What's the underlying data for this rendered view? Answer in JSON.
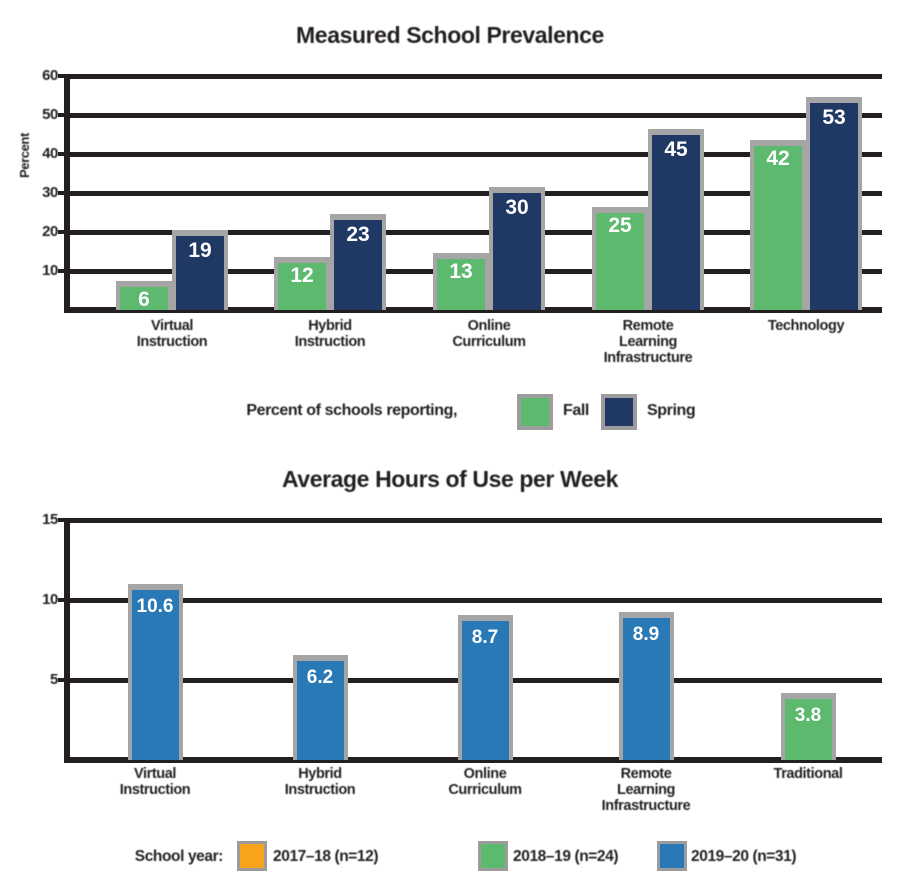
{
  "page_background": "#ffffff",
  "text_color": "#231f20",
  "colors": {
    "green": "#5cb96d",
    "navy": "#1f3864",
    "blue": "#2879b5",
    "orange": "#f9a21b",
    "bar_outline_gray": "#a5a5a5",
    "grid_dark": "#231f20",
    "value_label_white": "#ffffff"
  },
  "chart_data": [
    {
      "type": "bar",
      "title": "Measured School Prevalence",
      "ylabel": "Percent",
      "xlabel": "",
      "ylim": [
        0,
        60
      ],
      "yticks": [
        10,
        20,
        30,
        40,
        50,
        60
      ],
      "grid": true,
      "legend_position": "bottom",
      "legend_intro": "Percent of schools reporting,",
      "categories": [
        "Virtual Instruction",
        "Hybrid Instruction",
        "Online Curriculum",
        "Remote Learning Infrastructure",
        "Technology"
      ],
      "category_lines": [
        [
          "Virtual",
          "Instruction"
        ],
        [
          "Hybrid",
          "Instruction"
        ],
        [
          "Online",
          "Curriculum"
        ],
        [
          "Remote",
          "Learning",
          "Infrastructure"
        ],
        [
          "Technology"
        ]
      ],
      "series": [
        {
          "name": "Fall",
          "color": "#5cb96d",
          "values": [
            6,
            12,
            13,
            25,
            42
          ]
        },
        {
          "name": "Spring",
          "color": "#1f3864",
          "values": [
            19,
            23,
            30,
            45,
            53
          ]
        }
      ]
    },
    {
      "type": "bar",
      "title": "Average Hours of Use per Week",
      "ylabel": "",
      "xlabel": "",
      "ylim": [
        0,
        15
      ],
      "yticks": [
        5,
        10,
        15
      ],
      "grid": true,
      "legend_position": "bottom",
      "legend_intro": "School year:",
      "categories": [
        "Virtual Instruction",
        "Hybrid Instruction",
        "Online Curriculum",
        "Remote Learning Infrastructure",
        "Traditional"
      ],
      "category_lines": [
        [
          "Virtual",
          "Instruction"
        ],
        [
          "Hybrid",
          "Instruction"
        ],
        [
          "Online",
          "Curriculum"
        ],
        [
          "Remote",
          "Learning",
          "Infrastructure"
        ],
        [
          "Traditional"
        ]
      ],
      "values": [
        10.6,
        6.2,
        8.7,
        8.9,
        3.8
      ],
      "bar_colors": [
        "#2879b5",
        "#2879b5",
        "#2879b5",
        "#2879b5",
        "#5cb96d"
      ],
      "legend": {
        "items": [
          {
            "label": "2017–18 (n=12)",
            "color": "#f9a21b"
          },
          {
            "label": "2018–19 (n=24)",
            "color": "#5cb96d"
          },
          {
            "label": "2019–20 (n=31)",
            "color": "#2879b5"
          }
        ]
      }
    }
  ]
}
